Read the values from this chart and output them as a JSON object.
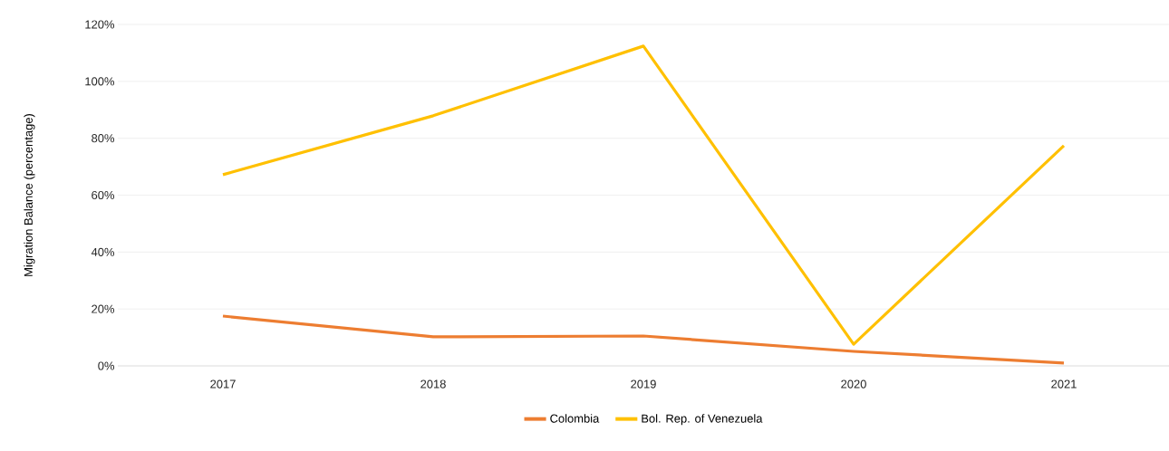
{
  "chart_data": {
    "type": "line",
    "ylabel": "Migration Balance (percentage)",
    "categories": [
      "2017",
      "2018",
      "2019",
      "2020",
      "2021"
    ],
    "series": [
      {
        "name": "Colombia",
        "color": "#ed7d31",
        "values": [
          17.5,
          10.2,
          10.5,
          5.1,
          1.0
        ]
      },
      {
        "name": "Bol. Rep. of Venezuela",
        "color": "#ffc000",
        "values": [
          67.2,
          87.9,
          112.4,
          7.6,
          77.4
        ]
      }
    ],
    "ylim": [
      0,
      120
    ],
    "yticks": [
      {
        "value": 0,
        "label": "0%"
      },
      {
        "value": 20,
        "label": "20%"
      },
      {
        "value": 40,
        "label": "40%"
      },
      {
        "value": 60,
        "label": "60%"
      },
      {
        "value": 80,
        "label": "80%"
      },
      {
        "value": 100,
        "label": "100%"
      },
      {
        "value": 120,
        "label": "120%"
      }
    ],
    "grid": "y",
    "legend": "bottom",
    "marker": "none",
    "line_style": "solid"
  }
}
